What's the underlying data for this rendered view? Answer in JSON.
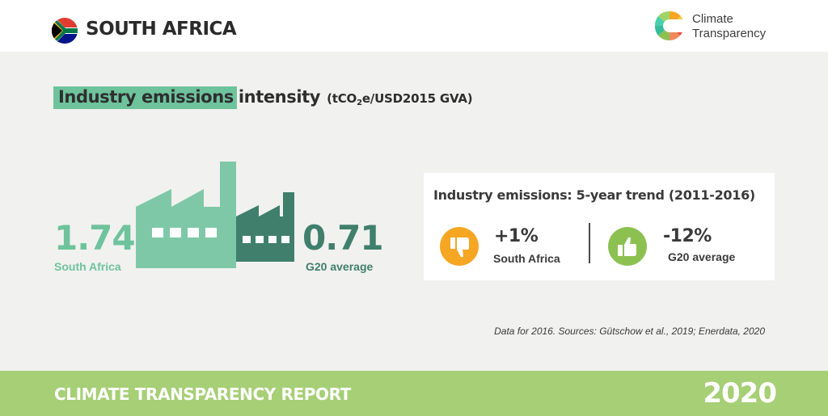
{
  "header": {
    "country": "SOUTH AFRICA",
    "logo_line1": "Climate",
    "logo_line2": "Transparency"
  },
  "heading": {
    "highlight": "Industry emissions",
    "rest": "intensity",
    "unit_prefix": "(tCO",
    "unit_sub": "2",
    "unit_suffix": "e/USD2015 GVA)"
  },
  "intensity": {
    "south_africa_value": "1.74",
    "south_africa_label": "South Africa",
    "g20_value": "0.71",
    "g20_label": "G20 average"
  },
  "trend": {
    "title": "Industry emissions: 5-year trend (2011-2016)",
    "south_africa_change": "+1%",
    "south_africa_label": "South Africa",
    "south_africa_icon": "thumbs-down-icon",
    "g20_change": "-12%",
    "g20_label": "G20 average",
    "g20_icon": "thumbs-up-icon"
  },
  "source_note": "Data for 2016. Sources: Gütschow et al., 2019; Enerdata, 2020",
  "footer": {
    "report_title": "CLIMATE TRANSPARENCY REPORT",
    "year": "2020"
  },
  "colors": {
    "highlight_green": "#6ec39c",
    "dark_green": "#3f7f6c",
    "footer_green": "#a6cf76",
    "thumbs_down": "#f5a623",
    "thumbs_up": "#8cc152"
  }
}
